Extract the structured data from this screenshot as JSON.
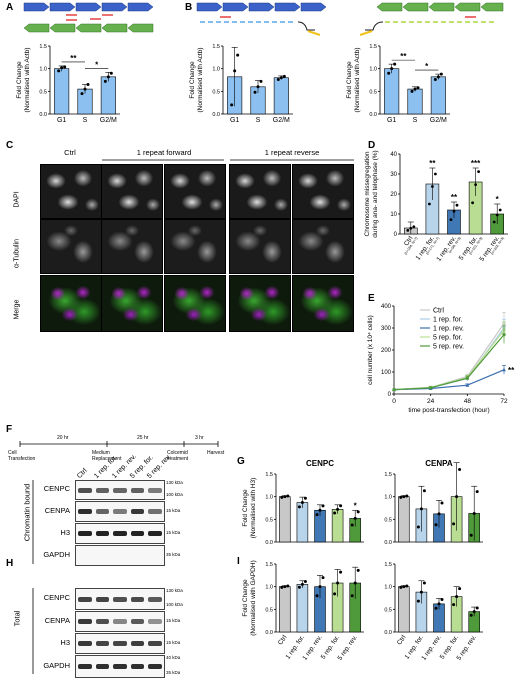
{
  "panels": {
    "A": "A",
    "B": "B",
    "C": "C",
    "D": "D",
    "E": "E",
    "F": "F",
    "G": "G",
    "H": "H",
    "I": "I"
  },
  "phase_charts": {
    "categories": [
      "G1",
      "S",
      "G2/M"
    ],
    "ylabel_line1": "Fold Change",
    "ylabel_line2": "(Normalised with Actb)",
    "A": {
      "values": [
        1.0,
        0.55,
        0.82
      ],
      "errors": [
        0.06,
        0.1,
        0.1
      ],
      "points": [
        [
          0.95,
          1.02,
          1.04
        ],
        [
          0.45,
          0.55,
          0.65
        ],
        [
          0.72,
          0.82,
          0.9
        ]
      ],
      "sig": [
        {
          "from": 0,
          "to": 1,
          "label": "**"
        },
        {
          "from": 1,
          "to": 2,
          "label": "*"
        }
      ],
      "ylim": [
        0,
        1.5
      ],
      "ticks": [
        "0.0",
        "0.5",
        "1.0",
        "1.5"
      ]
    },
    "B_left": {
      "values": [
        0.82,
        0.6,
        0.8
      ],
      "errors": [
        0.65,
        0.14,
        0.04
      ],
      "points": [
        [
          0.2,
          0.95,
          1.3
        ],
        [
          0.48,
          0.6,
          0.72
        ],
        [
          0.76,
          0.8,
          0.83
        ]
      ],
      "sig": [],
      "ylim": [
        0,
        1.5
      ],
      "ticks": [
        "0.0",
        "0.5",
        "1.0",
        "1.5"
      ]
    },
    "B_right": {
      "values": [
        1.0,
        0.55,
        0.82
      ],
      "errors": [
        0.1,
        0.05,
        0.06
      ],
      "points": [
        [
          0.9,
          1.0,
          1.1
        ],
        [
          0.5,
          0.55,
          0.58
        ],
        [
          0.76,
          0.82,
          0.88
        ]
      ],
      "sig": [
        {
          "from": 0,
          "to": 1,
          "label": "**"
        },
        {
          "from": 1,
          "to": 2,
          "label": "*"
        }
      ],
      "ylim": [
        0,
        1.5
      ],
      "ticks": [
        "0.0",
        "0.5",
        "1.0",
        "1.5"
      ]
    }
  },
  "microscopy": {
    "columns": [
      "Ctrl",
      "1 repeat forward",
      "1 repeat reverse"
    ],
    "rows": [
      "DAPI",
      "α-Tubulin",
      "Merge"
    ]
  },
  "chart_d": {
    "ylabel_line1": "Chromosome missegregation",
    "ylabel_line2": "during ana- and telophase (%)",
    "categories": [
      "Ctrl",
      "1 rep. for.",
      "1 rep. rev.",
      "5 rep. for.",
      "5 rep. rev."
    ],
    "ns": [
      "(n=184, N=7)",
      "(n=171, N=7)",
      "(n=98, N=3)",
      "(n=101, N=3)",
      "(n=102, N=3)"
    ],
    "values": [
      3,
      25,
      12,
      26,
      10
    ],
    "errors": [
      3,
      8,
      4,
      7,
      5
    ],
    "sig": [
      "",
      "**",
      "**",
      "***",
      "*"
    ],
    "ylim": [
      0,
      40
    ],
    "ticks": [
      "0",
      "10",
      "20",
      "30",
      "40"
    ],
    "colors": [
      "#c8c8c8",
      "#b8d4ea",
      "#3f78b4",
      "#b9de93",
      "#4f9a3a"
    ]
  },
  "chart_e": {
    "ylabel": "cell number (x 10⁴ cells)",
    "xlabel": "time post-transfection (hour)",
    "x": [
      0,
      24,
      48,
      72
    ],
    "xticks": [
      "0",
      "24",
      "48",
      "72"
    ],
    "yticks": [
      "0",
      "100",
      "200",
      "300",
      "400"
    ],
    "ylim": [
      0,
      400
    ],
    "series": [
      {
        "name": "Ctrl",
        "color": "#c8c8c8",
        "values": [
          20,
          30,
          80,
          320
        ],
        "err": [
          0,
          5,
          10,
          50
        ]
      },
      {
        "name": "1 rep. for.",
        "color": "#a9cbe6",
        "values": [
          20,
          28,
          70,
          300
        ],
        "err": [
          0,
          5,
          10,
          40
        ]
      },
      {
        "name": "1 rep. rev.",
        "color": "#3a6fae",
        "values": [
          20,
          25,
          40,
          110
        ],
        "err": [
          0,
          4,
          6,
          20
        ]
      },
      {
        "name": "5 rep. for.",
        "color": "#b9de93",
        "values": [
          20,
          30,
          75,
          290
        ],
        "err": [
          0,
          5,
          10,
          40
        ]
      },
      {
        "name": "5 rep. rev.",
        "color": "#4f9a3a",
        "values": [
          20,
          28,
          72,
          270
        ],
        "err": [
          0,
          5,
          10,
          40
        ]
      }
    ],
    "sig_label": "**"
  },
  "timeline": {
    "intervals": [
      "20 hr",
      "25 hr",
      "3 hr"
    ],
    "events": [
      "Cell\nTransfection",
      "Medium\nReplacement",
      "Colcemid\ntreatment",
      "Harvest"
    ]
  },
  "blots": {
    "lanes": [
      "Ctrl",
      "1 rep. for.",
      "1 rep. rev.",
      "5 rep. for.",
      "5 rep. rev."
    ],
    "chromatin_label": "Chromatin bound",
    "total_label": "Total",
    "chromatin_rows": [
      {
        "name": "CENPC",
        "kda": [
          "130 kDa",
          "100 kDa"
        ]
      },
      {
        "name": "CENPA",
        "kda": [
          "15 kDa"
        ]
      },
      {
        "name": "H3",
        "kda": [
          "15 kDa"
        ]
      },
      {
        "name": "GAPDH",
        "kda": [
          "35 kDa"
        ]
      }
    ],
    "total_rows": [
      {
        "name": "CENPC",
        "kda": [
          "130 kDa",
          "100 kDa"
        ]
      },
      {
        "name": "CENPA",
        "kda": [
          "15 kDa"
        ]
      },
      {
        "name": "H3",
        "kda": [
          "15 kDa"
        ]
      },
      {
        "name": "GAPDH",
        "kda": [
          "40 kDa",
          "35 kDa"
        ]
      }
    ]
  },
  "quant": {
    "categories": [
      "Ctrl",
      "1 rep. for.",
      "1 rep. rev.",
      "5 rep. for.",
      "5 rep. rev."
    ],
    "colors": [
      "#c8c8c8",
      "#b8d4ea",
      "#3f78b4",
      "#b9de93",
      "#4f9a3a"
    ],
    "G_ylabel_line1": "Fold Change",
    "G_ylabel_line2": "(Normalised with H3)",
    "I_ylabel_line1": "Fold Change",
    "I_ylabel_line2": "(Normalised with GAPDH)",
    "ticks": [
      "0.0",
      "0.5",
      "1.0",
      "1.5"
    ],
    "G_cenpc": {
      "title": "CENPC",
      "values": [
        1.0,
        0.87,
        0.7,
        0.72,
        0.52
      ],
      "errors": [
        0.02,
        0.12,
        0.12,
        0.1,
        0.18
      ],
      "sig": [
        "",
        "",
        "",
        "",
        "*"
      ]
    },
    "G_cenpa": {
      "title": "CENPA",
      "values": [
        1.0,
        0.73,
        0.62,
        1.0,
        0.63
      ],
      "errors": [
        0.02,
        0.5,
        0.3,
        0.75,
        0.6
      ],
      "sig": [
        "",
        "",
        "",
        "",
        ""
      ]
    },
    "I_cenpc": {
      "title": "",
      "values": [
        1.0,
        1.05,
        1.0,
        1.08,
        1.08
      ],
      "errors": [
        0.02,
        0.08,
        0.25,
        0.3,
        0.35
      ],
      "sig": [
        "",
        "",
        "",
        "",
        ""
      ]
    },
    "I_cenpa": {
      "title": "",
      "values": [
        1.0,
        0.88,
        0.62,
        0.78,
        0.45
      ],
      "errors": [
        0.02,
        0.25,
        0.12,
        0.22,
        0.1
      ],
      "sig": [
        "",
        "",
        "",
        "",
        ""
      ]
    }
  }
}
